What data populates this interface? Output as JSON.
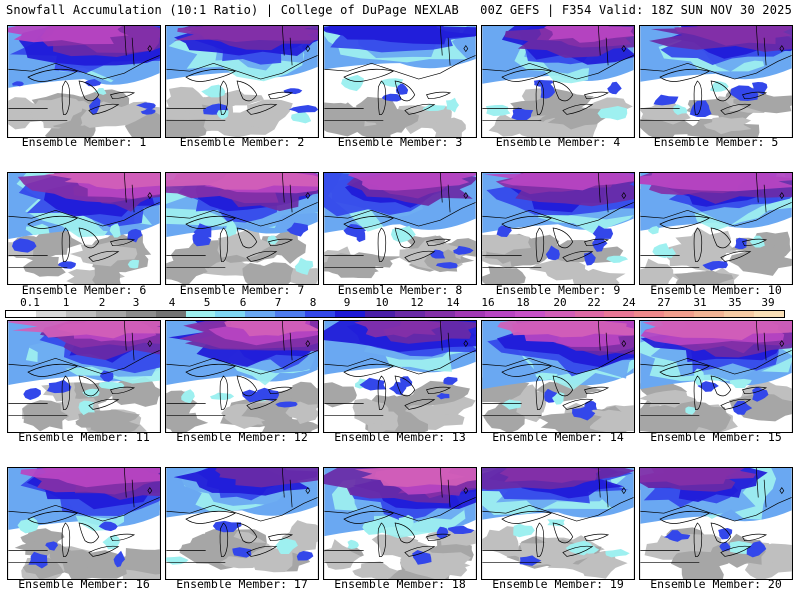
{
  "header": {
    "left": "Snowfall Accumulation (10:1 Ratio) | College of DuPage NEXLAB",
    "right": "00Z GEFS | F354 Valid: 18Z SUN NOV 30 2025"
  },
  "colorbar": {
    "labels": [
      "0.1",
      "1",
      "2",
      "3",
      "4",
      "5",
      "6",
      "7",
      "8",
      "9",
      "10",
      "12",
      "14",
      "16",
      "18",
      "20",
      "22",
      "24",
      "27",
      "31",
      "35",
      "39"
    ],
    "colors": [
      "#ffffff",
      "#d9d9d9",
      "#bfbfbf",
      "#a6a6a6",
      "#8c8c8c",
      "#737373",
      "#9ef0f0",
      "#7fd8f4",
      "#6aa8f2",
      "#4f7cee",
      "#3347ea",
      "#1f1ad8",
      "#4b1fa8",
      "#6a2aa6",
      "#8430a8",
      "#a238b4",
      "#b845c2",
      "#c852c8",
      "#d35fb8",
      "#de6aa6",
      "#e87896",
      "#ef8a8c",
      "#f19f8e",
      "#f3b596",
      "#f6cba4",
      "#f9dfb6"
    ]
  },
  "panels": [
    {
      "caption": "Ensemble Member: 1",
      "snow": 0.75,
      "west": 0.55
    },
    {
      "caption": "Ensemble Member: 2",
      "snow": 0.55,
      "west": 0.45
    },
    {
      "caption": "Ensemble Member: 3",
      "snow": 0.3,
      "west": 0.3
    },
    {
      "caption": "Ensemble Member: 4",
      "snow": 0.65,
      "west": 0.55
    },
    {
      "caption": "Ensemble Member: 5",
      "snow": 0.6,
      "west": 0.65
    },
    {
      "caption": "Ensemble Member: 6",
      "snow": 0.85,
      "west": 0.75
    },
    {
      "caption": "Ensemble Member: 7",
      "snow": 0.8,
      "west": 0.55
    },
    {
      "caption": "Ensemble Member: 8",
      "snow": 0.7,
      "west": 0.35
    },
    {
      "caption": "Ensemble Member: 9",
      "snow": 0.7,
      "west": 0.4
    },
    {
      "caption": "Ensemble Member: 10",
      "snow": 0.65,
      "west": 0.3
    },
    {
      "caption": "Ensemble Member: 11",
      "snow": 0.8,
      "west": 0.7
    },
    {
      "caption": "Ensemble Member: 12",
      "snow": 0.8,
      "west": 0.75
    },
    {
      "caption": "Ensemble Member: 13",
      "snow": 0.55,
      "west": 0.6
    },
    {
      "caption": "Ensemble Member: 14",
      "snow": 0.9,
      "west": 0.85
    },
    {
      "caption": "Ensemble Member: 15",
      "snow": 0.9,
      "west": 0.55
    },
    {
      "caption": "Ensemble Member: 16",
      "snow": 0.75,
      "west": 0.8
    },
    {
      "caption": "Ensemble Member: 17",
      "snow": 0.45,
      "west": 0.55
    },
    {
      "caption": "Ensemble Member: 18",
      "snow": 0.9,
      "west": 0.85
    },
    {
      "caption": "Ensemble Member: 19",
      "snow": 0.5,
      "west": 0.4
    },
    {
      "caption": "Ensemble Member: 20",
      "snow": 0.6,
      "west": 0.3
    }
  ]
}
